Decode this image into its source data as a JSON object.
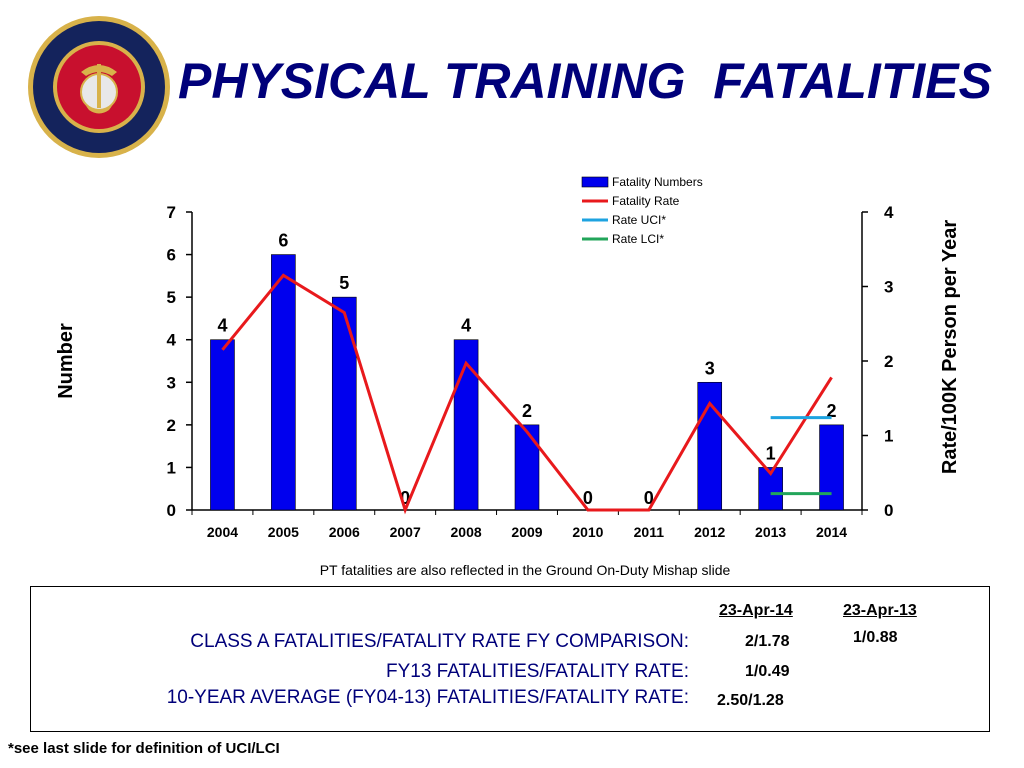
{
  "page": {
    "title": "PHYSICAL TRAINING  FATALITIES",
    "seal": {
      "top_text": "DEPARTMENT OF THE NAVY",
      "bottom_text": "UNITED STATES MARINE CORPS"
    },
    "chart_note": "PT fatalities are also reflected in the Ground On-Duty Mishap slide",
    "footnote": "*see last slide for definition of UCI/LCI"
  },
  "colors": {
    "title": "#00007a",
    "bar": "#0000ee",
    "rate_line": "#e8191c",
    "uci_line": "#1ea3e0",
    "lci_line": "#22a55a"
  },
  "chart_data": {
    "type": "bar",
    "categories": [
      "2004",
      "2005",
      "2006",
      "2007",
      "2008",
      "2009",
      "2010",
      "2011",
      "2012",
      "2013",
      "2014"
    ],
    "series": [
      {
        "name": "Fatality Numbers",
        "type": "bar",
        "axis": "left",
        "values": [
          4,
          6,
          5,
          0,
          4,
          2,
          0,
          0,
          3,
          1,
          2
        ],
        "labels": [
          "4",
          "6",
          "5",
          "0",
          "4",
          "2",
          "0",
          "0",
          "3",
          "1",
          "2"
        ]
      },
      {
        "name": "Fatality Rate",
        "type": "line",
        "axis": "right",
        "values": [
          2.15,
          3.15,
          2.65,
          0,
          1.97,
          1.05,
          0,
          0,
          1.43,
          0.49,
          1.78
        ]
      },
      {
        "name": "Rate UCI*",
        "type": "line",
        "axis": "right",
        "x": [
          "2013",
          "2014"
        ],
        "values": [
          1.24,
          1.24
        ]
      },
      {
        "name": "Rate LCI*",
        "type": "line",
        "axis": "right",
        "x": [
          "2013",
          "2014"
        ],
        "values": [
          0.22,
          0.22
        ]
      }
    ],
    "ylabel": "Number",
    "y2label": "Rate/100K Person per Year",
    "ylim": [
      0,
      7
    ],
    "y2lim": [
      0,
      4
    ],
    "yticks": [
      "0",
      "1",
      "2",
      "3",
      "4",
      "5",
      "6",
      "7"
    ],
    "y2ticks": [
      "0",
      "1",
      "2",
      "3",
      "4"
    ],
    "legend": "top-right",
    "grid": false
  },
  "comparison": {
    "headers": [
      "23-Apr-14",
      "23-Apr-13"
    ],
    "rows": [
      {
        "label": "CLASS A FATALITIES/FATALITY RATE FY COMPARISON:",
        "values": [
          "2/1.78",
          "1/0.88"
        ]
      },
      {
        "label": "FY13 FATALITIES/FATALITY RATE:",
        "values": [
          "1/0.49"
        ]
      },
      {
        "label": "10-YEAR AVERAGE (FY04-13) FATALITIES/FATALITY RATE:",
        "values": [
          "2.50/1.28"
        ]
      }
    ]
  }
}
